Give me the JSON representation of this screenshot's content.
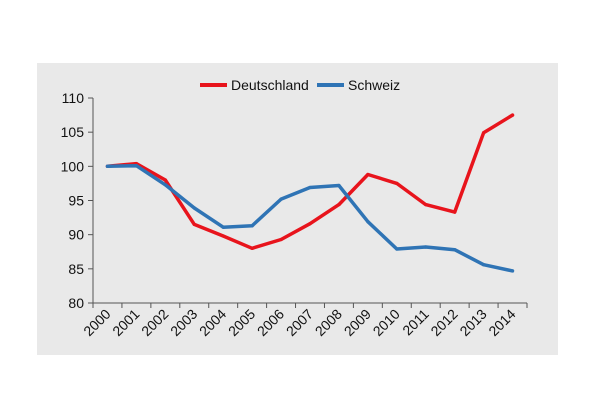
{
  "chart_data": {
    "type": "line",
    "title": "",
    "xlabel": "",
    "ylabel": "",
    "categories": [
      "2000",
      "2001",
      "2002",
      "2003",
      "2004",
      "2005",
      "2006",
      "2007",
      "2008",
      "2009",
      "2010",
      "2011",
      "2012",
      "2013",
      "2014"
    ],
    "ylim": [
      80,
      110
    ],
    "yticks": [
      80,
      85,
      90,
      95,
      100,
      105,
      110
    ],
    "grid": false,
    "legend_position": "top",
    "series": [
      {
        "name": "Deutschland",
        "color": "#e8141c",
        "values": [
          100,
          100.4,
          98,
          91.5,
          89.8,
          88,
          89.3,
          91.6,
          94.4,
          98.8,
          97.5,
          94.4,
          93.3,
          104.9,
          107.5
        ]
      },
      {
        "name": "Schweiz",
        "color": "#2f74b5",
        "values": [
          100,
          100.1,
          97.3,
          93.9,
          91.1,
          91.3,
          95.2,
          96.9,
          97.2,
          91.9,
          87.9,
          88.2,
          87.8,
          85.6,
          84.7
        ]
      }
    ]
  }
}
